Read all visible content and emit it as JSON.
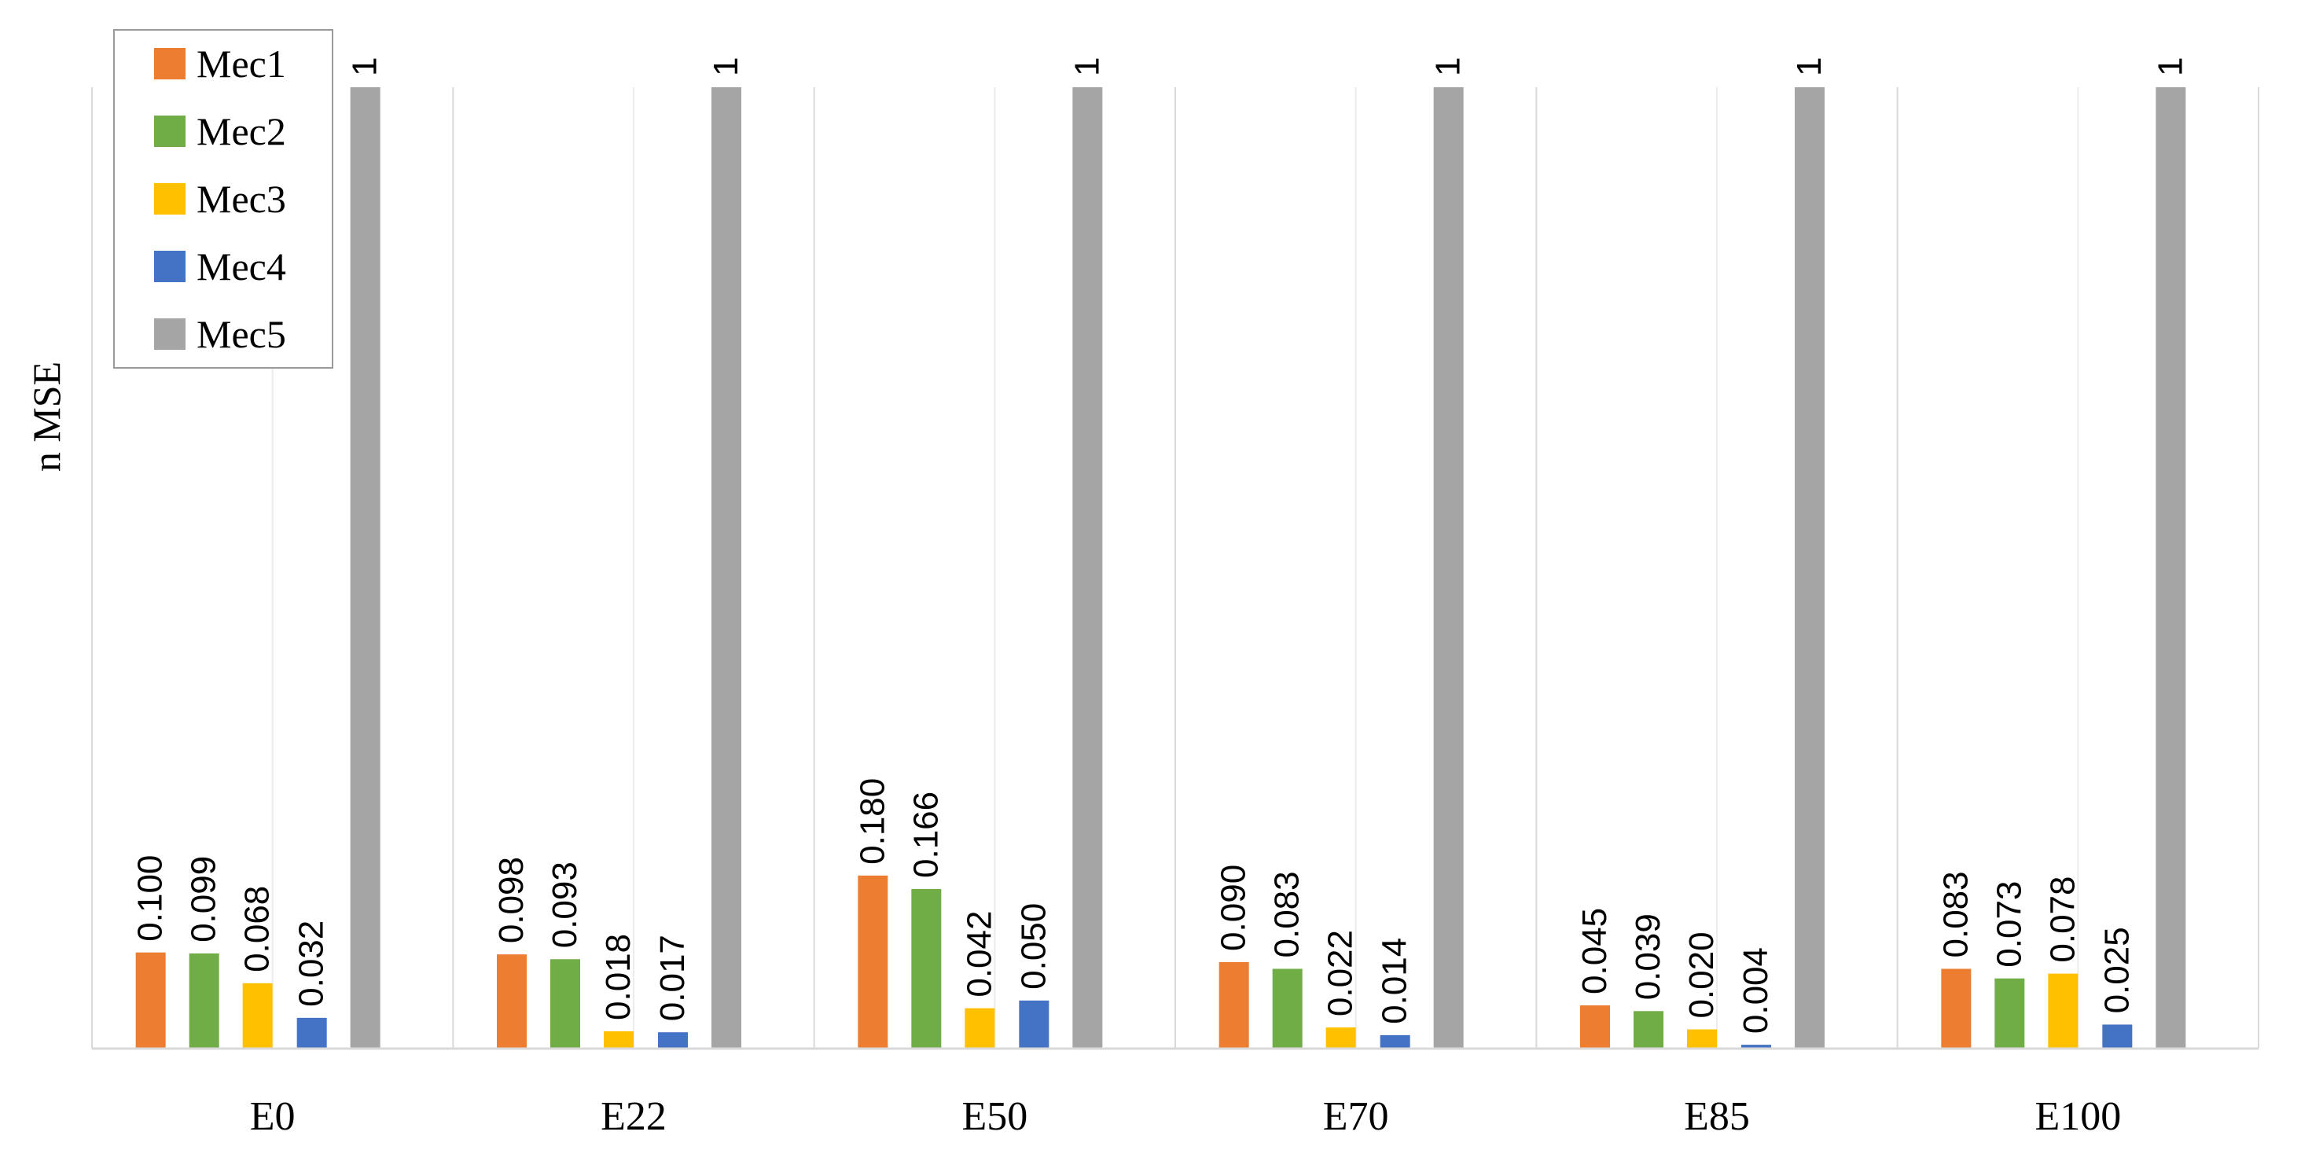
{
  "chart_data": {
    "type": "bar",
    "title": "",
    "xlabel": "",
    "ylabel": "n MSE",
    "ylim": [
      0,
      1
    ],
    "grid": "vertical-minor",
    "legend_position": "top-left",
    "categories": [
      "E0",
      "E22",
      "E50",
      "E70",
      "E85",
      "E100"
    ],
    "series": [
      {
        "name": "Mec1",
        "color": "#ED7D31",
        "values": [
          0.1,
          0.098,
          0.18,
          0.09,
          0.045,
          0.083
        ],
        "labels": [
          "0.100",
          "0.098",
          "0.180",
          "0.090",
          "0.045",
          "0.083"
        ]
      },
      {
        "name": "Mec2",
        "color": "#70AD47",
        "values": [
          0.099,
          0.093,
          0.166,
          0.083,
          0.039,
          0.073
        ],
        "labels": [
          "0.099",
          "0.093",
          "0.166",
          "0.083",
          "0.039",
          "0.073"
        ]
      },
      {
        "name": "Mec3",
        "color": "#FFC000",
        "values": [
          0.068,
          0.018,
          0.042,
          0.022,
          0.02,
          0.078
        ],
        "labels": [
          "0.068",
          "0.018",
          "0.042",
          "0.022",
          "0.020",
          "0.078"
        ]
      },
      {
        "name": "Mec4",
        "color": "#4472C4",
        "values": [
          0.032,
          0.017,
          0.05,
          0.014,
          0.004,
          0.025
        ],
        "labels": [
          "0.032",
          "0.017",
          "0.050",
          "0.014",
          "0.004",
          "0.025"
        ]
      },
      {
        "name": "Mec5",
        "color": "#A5A5A5",
        "values": [
          1,
          1,
          1,
          1,
          1,
          1
        ],
        "labels": [
          "1",
          "1",
          "1",
          "1",
          "1",
          "1"
        ]
      }
    ]
  }
}
